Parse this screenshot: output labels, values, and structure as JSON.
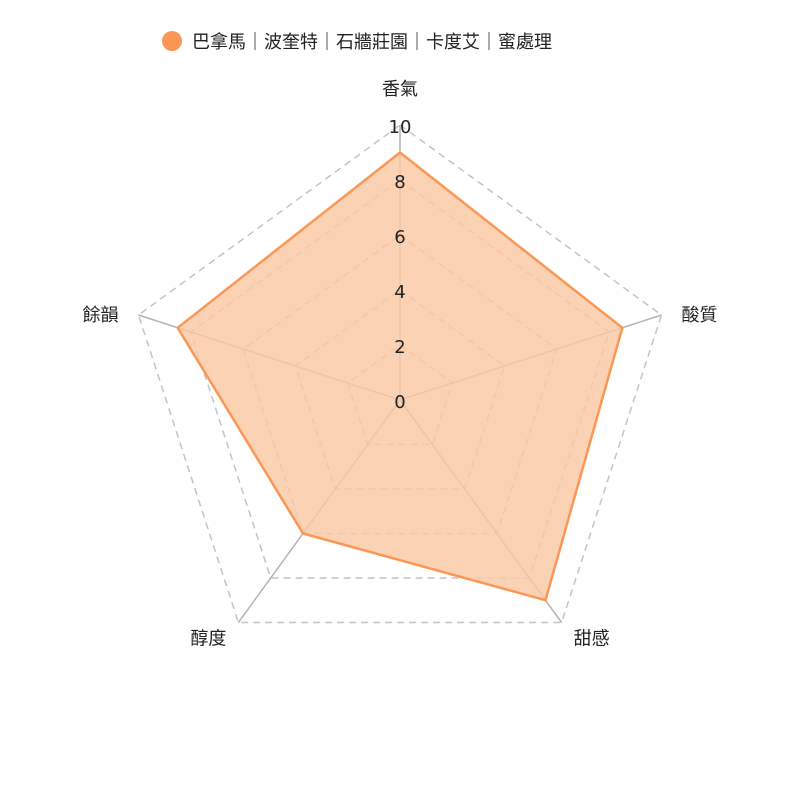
{
  "chart_data": {
    "type": "radar",
    "axes": [
      "香氣",
      "酸質",
      "甜感",
      "醇度",
      "餘韻"
    ],
    "ticks": [
      "0",
      "2",
      "4",
      "6",
      "8",
      "10"
    ],
    "rmax": 10,
    "series": [
      {
        "name": "巴拿馬｜波奎特｜石牆莊園｜卡度艾｜蜜處理",
        "values": [
          9,
          8.5,
          9,
          6,
          8.5
        ]
      }
    ],
    "legend_position": "top-center",
    "colors": {
      "series": "#fb9754",
      "fill": "#fbc8a5",
      "grid": "#c4c4c4",
      "spoke": "#b3b3b3"
    }
  }
}
